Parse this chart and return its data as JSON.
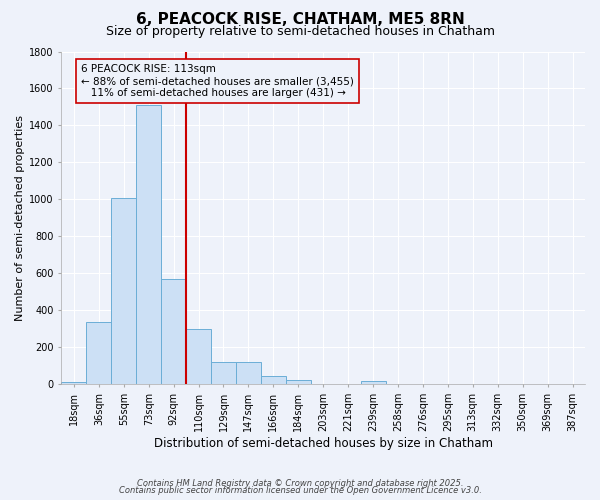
{
  "title": "6, PEACOCK RISE, CHATHAM, ME5 8RN",
  "subtitle": "Size of property relative to semi-detached houses in Chatham",
  "xlabel": "Distribution of semi-detached houses by size in Chatham",
  "ylabel": "Number of semi-detached properties",
  "bar_labels": [
    "18sqm",
    "36sqm",
    "55sqm",
    "73sqm",
    "92sqm",
    "110sqm",
    "129sqm",
    "147sqm",
    "166sqm",
    "184sqm",
    "203sqm",
    "221sqm",
    "239sqm",
    "258sqm",
    "276sqm",
    "295sqm",
    "313sqm",
    "332sqm",
    "350sqm",
    "369sqm",
    "387sqm"
  ],
  "bar_values": [
    15,
    335,
    1010,
    1510,
    570,
    300,
    120,
    120,
    45,
    25,
    5,
    5,
    20,
    0,
    0,
    0,
    0,
    0,
    0,
    0,
    0
  ],
  "bar_color": "#cce0f5",
  "bar_edgecolor": "#6baed6",
  "vline_x_index": 5,
  "vline_color": "#cc0000",
  "annotation_text": "6 PEACOCK RISE: 113sqm\n← 88% of semi-detached houses are smaller (3,455)\n   11% of semi-detached houses are larger (431) →",
  "annotation_box_color": "#cc0000",
  "ylim": [
    0,
    1800
  ],
  "yticks": [
    0,
    200,
    400,
    600,
    800,
    1000,
    1200,
    1400,
    1600,
    1800
  ],
  "footnote1": "Contains HM Land Registry data © Crown copyright and database right 2025.",
  "footnote2": "Contains public sector information licensed under the Open Government Licence v3.0.",
  "bg_color": "#eef2fa",
  "grid_color": "#ffffff",
  "title_fontsize": 11,
  "subtitle_fontsize": 9,
  "tick_fontsize": 7,
  "ylabel_fontsize": 8,
  "xlabel_fontsize": 8.5,
  "footnote_fontsize": 6,
  "annotation_fontsize": 7.5
}
